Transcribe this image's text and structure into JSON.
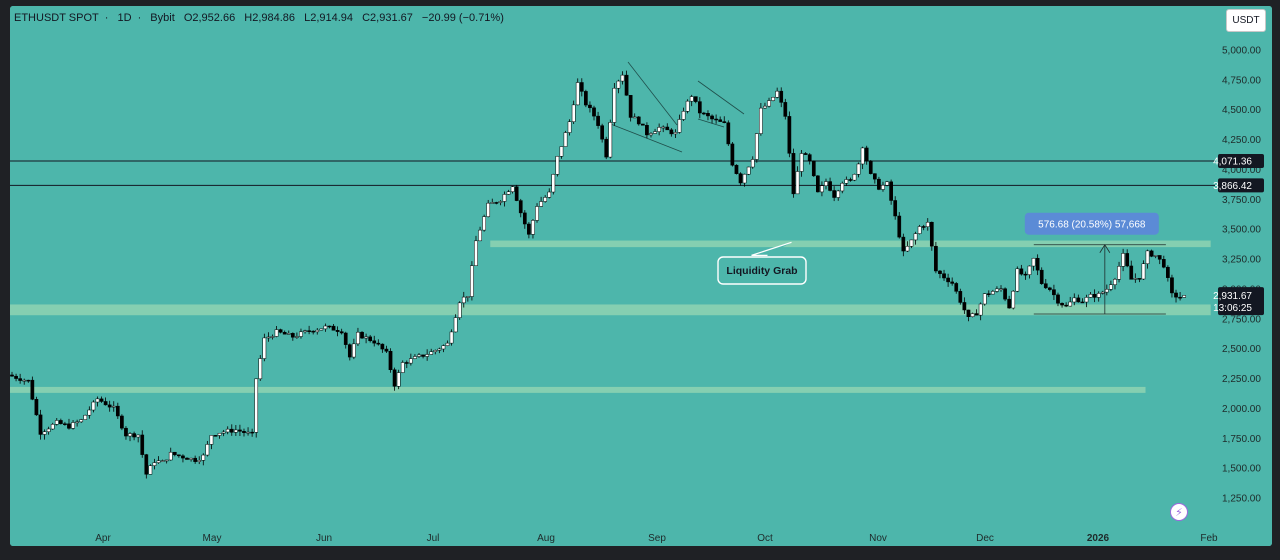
{
  "legend": {
    "symbol": "ETHUSDT SPOT",
    "interval": "1D",
    "exchange": "Bybit",
    "open": "O2,952.66",
    "high": "H2,984.86",
    "low": "L2,914.94",
    "close": "C2,931.67",
    "change": "−20.99 (−0.71%)"
  },
  "currency_button": "USDT",
  "colors": {
    "background": "#4db6ab",
    "zone": "#8fd3b2",
    "candle_up": "#ffffff",
    "candle_down": "#000000",
    "line": "#131722"
  },
  "chart_data": {
    "type": "candlestick",
    "y_unit": "USDT",
    "y_range": [
      1100,
      5300
    ],
    "yticks": [
      "1,250.00",
      "1,500.00",
      "1,750.00",
      "2,000.00",
      "2,250.00",
      "2,500.00",
      "2,750.00",
      "3,000.00",
      "3,250.00",
      "3,500.00",
      "3,750.00",
      "4,000.00",
      "4,250.00",
      "4,500.00",
      "4,750.00",
      "5,000.00"
    ],
    "ytick_values": [
      1250,
      1500,
      1750,
      2000,
      2250,
      2500,
      2750,
      3000,
      3250,
      3500,
      3750,
      4000,
      4250,
      4500,
      4750,
      5000
    ],
    "xticks": [
      "Apr",
      "May",
      "Jun",
      "Jul",
      "Aug",
      "Sep",
      "Oct",
      "Nov",
      "Dec",
      "2026",
      "Feb"
    ],
    "xtick_bold": [
      "2026"
    ],
    "horizontal_lines": [
      {
        "value": 4071.36,
        "label": "4,071.36"
      },
      {
        "value": 3866.42,
        "label": "3,866.42"
      }
    ],
    "zones": [
      {
        "low": 3350,
        "high": 3405,
        "from": "Jul 5",
        "to": "Jan 28"
      },
      {
        "low": 2780,
        "high": 2870,
        "from": "Mar 10",
        "to": "Jan 28"
      },
      {
        "low": 2130,
        "high": 2180,
        "from": "Mar 10",
        "to": "Jan 12"
      }
    ],
    "current_price": {
      "value": 2931.67,
      "label": "2,931.67",
      "countdown": "13:06:25"
    },
    "annotations": [
      {
        "type": "callout",
        "text": "Liquidity Grab",
        "value": 3390
      },
      {
        "type": "measure",
        "text": "576.68 (20.58%) 57,668",
        "from": 2790,
        "to": 3370
      }
    ],
    "ohlc_path": [
      [
        0,
        2280
      ],
      [
        5,
        2230
      ],
      [
        8,
        1800
      ],
      [
        12,
        1880
      ],
      [
        15,
        1850
      ],
      [
        18,
        1900
      ],
      [
        22,
        2080
      ],
      [
        26,
        2000
      ],
      [
        29,
        1780
      ],
      [
        32,
        1780
      ],
      [
        34,
        1450
      ],
      [
        36,
        1560
      ],
      [
        38,
        1550
      ],
      [
        40,
        1620
      ],
      [
        46,
        1570
      ],
      [
        48,
        1600
      ],
      [
        50,
        1780
      ],
      [
        52,
        1800
      ],
      [
        56,
        1820
      ],
      [
        60,
        1780
      ],
      [
        61,
        2250
      ],
      [
        63,
        2580
      ],
      [
        66,
        2640
      ],
      [
        70,
        2600
      ],
      [
        74,
        2650
      ],
      [
        78,
        2680
      ],
      [
        82,
        2650
      ],
      [
        84,
        2430
      ],
      [
        86,
        2620
      ],
      [
        90,
        2560
      ],
      [
        93,
        2460
      ],
      [
        95,
        2200
      ],
      [
        97,
        2380
      ],
      [
        100,
        2420
      ],
      [
        104,
        2470
      ],
      [
        108,
        2540
      ],
      [
        111,
        2900
      ],
      [
        113,
        2950
      ],
      [
        115,
        3400
      ],
      [
        118,
        3700
      ],
      [
        121,
        3750
      ],
      [
        124,
        3870
      ],
      [
        126,
        3640
      ],
      [
        128,
        3450
      ],
      [
        130,
        3700
      ],
      [
        133,
        3800
      ],
      [
        135,
        4100
      ],
      [
        138,
        4400
      ],
      [
        140,
        4720
      ],
      [
        142,
        4550
      ],
      [
        144,
        4450
      ],
      [
        145,
        4380
      ],
      [
        147,
        4120
      ],
      [
        149,
        4700
      ],
      [
        151,
        4800
      ],
      [
        153,
        4450
      ],
      [
        155,
        4400
      ],
      [
        157,
        4300
      ],
      [
        160,
        4350
      ],
      [
        164,
        4300
      ],
      [
        166,
        4500
      ],
      [
        168,
        4620
      ],
      [
        170,
        4480
      ],
      [
        173,
        4420
      ],
      [
        176,
        4380
      ],
      [
        178,
        4050
      ],
      [
        180,
        3900
      ],
      [
        183,
        4100
      ],
      [
        185,
        4500
      ],
      [
        187,
        4560
      ],
      [
        189,
        4650
      ],
      [
        191,
        4450
      ],
      [
        193,
        3800
      ],
      [
        195,
        4150
      ],
      [
        197,
        4060
      ],
      [
        199,
        3800
      ],
      [
        201,
        3900
      ],
      [
        203,
        3780
      ],
      [
        205,
        3900
      ],
      [
        207,
        3900
      ],
      [
        209,
        4050
      ],
      [
        210,
        4200
      ],
      [
        212,
        3950
      ],
      [
        214,
        3850
      ],
      [
        216,
        3880
      ],
      [
        218,
        3600
      ],
      [
        220,
        3300
      ],
      [
        222,
        3400
      ],
      [
        224,
        3520
      ],
      [
        226,
        3550
      ],
      [
        228,
        3150
      ],
      [
        230,
        3100
      ],
      [
        232,
        3050
      ],
      [
        234,
        2900
      ],
      [
        236,
        2750
      ],
      [
        238,
        2800
      ],
      [
        240,
        2950
      ],
      [
        242,
        2980
      ],
      [
        244,
        3000
      ],
      [
        246,
        2850
      ],
      [
        248,
        3150
      ],
      [
        250,
        3100
      ],
      [
        252,
        3250
      ],
      [
        254,
        3050
      ],
      [
        256,
        3000
      ],
      [
        258,
        2900
      ],
      [
        260,
        2850
      ],
      [
        262,
        2920
      ],
      [
        264,
        2900
      ],
      [
        266,
        2940
      ],
      [
        268,
        2950
      ],
      [
        270,
        3000
      ],
      [
        272,
        3100
      ],
      [
        274,
        3280
      ],
      [
        276,
        3080
      ],
      [
        278,
        3100
      ],
      [
        280,
        3300
      ],
      [
        282,
        3280
      ],
      [
        284,
        3200
      ],
      [
        286,
        2950
      ],
      [
        288,
        2932
      ]
    ]
  }
}
